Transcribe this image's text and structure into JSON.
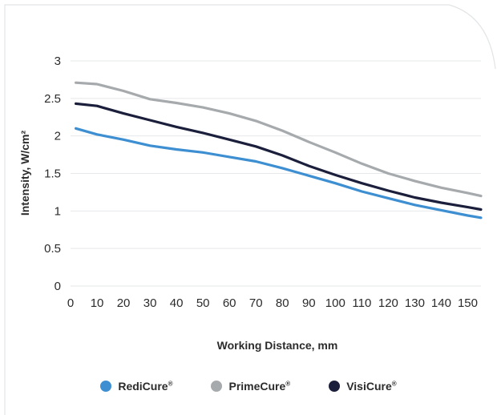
{
  "chart_data": {
    "type": "line",
    "title": "",
    "xlabel": "Working Distance, mm",
    "ylabel": "Intensity, W/cm²",
    "xlim": [
      0,
      155
    ],
    "ylim": [
      0,
      3
    ],
    "x_ticks": [
      "0",
      "10",
      "20",
      "30",
      "40",
      "50",
      "60",
      "70",
      "80",
      "90",
      "100",
      "110",
      "120",
      "130",
      "140",
      "150"
    ],
    "y_ticks": [
      "0",
      "0.5",
      "1",
      "1.5",
      "2",
      "2.5",
      "3"
    ],
    "grid": "horizontal",
    "legend_position": "bottom",
    "x": [
      2,
      10,
      20,
      30,
      40,
      50,
      60,
      70,
      80,
      90,
      100,
      110,
      120,
      130,
      140,
      150,
      155
    ],
    "series": [
      {
        "name": "RediCure",
        "color": "#3d8fd1",
        "values": [
          2.1,
          2.02,
          1.95,
          1.87,
          1.82,
          1.78,
          1.72,
          1.66,
          1.57,
          1.47,
          1.37,
          1.26,
          1.17,
          1.08,
          1.01,
          0.94,
          0.91
        ]
      },
      {
        "name": "PrimeCure",
        "color": "#a6aaad",
        "values": [
          2.71,
          2.69,
          2.6,
          2.49,
          2.44,
          2.38,
          2.3,
          2.2,
          2.07,
          1.92,
          1.78,
          1.63,
          1.5,
          1.4,
          1.31,
          1.24,
          1.2
        ]
      },
      {
        "name": "VisiCure",
        "color": "#1b1f3b",
        "values": [
          2.43,
          2.4,
          2.3,
          2.21,
          2.12,
          2.04,
          1.95,
          1.86,
          1.74,
          1.6,
          1.48,
          1.37,
          1.27,
          1.18,
          1.11,
          1.05,
          1.02
        ]
      }
    ],
    "legend_mark": "®"
  }
}
